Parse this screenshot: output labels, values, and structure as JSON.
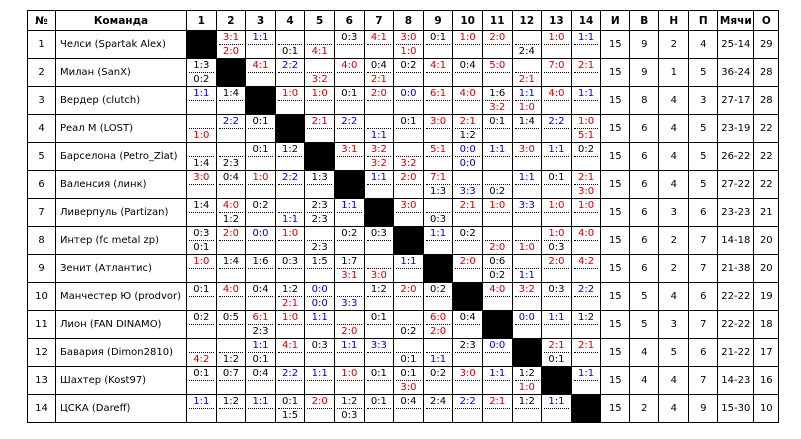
{
  "headers": {
    "num": "№",
    "team": "Команда",
    "cols": [
      "1",
      "2",
      "3",
      "4",
      "5",
      "6",
      "7",
      "8",
      "9",
      "10",
      "11",
      "12",
      "13",
      "14"
    ],
    "games": "И",
    "wins": "В",
    "draws": "Н",
    "losses": "П",
    "goals": "Мячи",
    "points": "О"
  },
  "colors": {
    "win": "#d00000",
    "draw": "#0000c0",
    "loss": "#000000"
  },
  "rows": [
    {
      "num": "1",
      "team": "Челси (Spartak Alex)",
      "results": [
        null,
        [
          "3:1",
          "2:0"
        ],
        [
          "1:1",
          ""
        ],
        [
          "",
          "0:1"
        ],
        [
          "",
          "4:1"
        ],
        [
          "0:3",
          ""
        ],
        [
          "4:1",
          ""
        ],
        [
          "3:0",
          "1:0"
        ],
        [
          "0:1",
          ""
        ],
        [
          "1:0",
          ""
        ],
        [
          "2:0",
          ""
        ],
        [
          "",
          "2:4"
        ],
        [
          "1:0",
          ""
        ],
        [
          "1:1",
          ""
        ]
      ],
      "games": "15",
      "w": "9",
      "d": "2",
      "l": "4",
      "goals": "25-14",
      "pts": "29"
    },
    {
      "num": "2",
      "team": "Милан (SanX)",
      "results": [
        [
          "1:3",
          "0:2"
        ],
        null,
        [
          "4:1",
          ""
        ],
        [
          "2:2",
          ""
        ],
        [
          "",
          "3:2"
        ],
        [
          "4:0",
          ""
        ],
        [
          "0:4",
          "2:1"
        ],
        [
          "0:2",
          ""
        ],
        [
          "4:1",
          ""
        ],
        [
          "0:4",
          ""
        ],
        [
          "5:0",
          ""
        ],
        [
          "",
          "2:1"
        ],
        [
          "7:0",
          ""
        ],
        [
          "2:1",
          ""
        ]
      ],
      "games": "15",
      "w": "9",
      "d": "1",
      "l": "5",
      "goals": "36-24",
      "pts": "28"
    },
    {
      "num": "3",
      "team": "Вердер (clutch)",
      "results": [
        [
          "1:1",
          ""
        ],
        [
          "1:4",
          ""
        ],
        null,
        [
          "1:0",
          ""
        ],
        [
          "1:0",
          ""
        ],
        [
          "0:1",
          ""
        ],
        [
          "2:0",
          ""
        ],
        [
          "0:0",
          ""
        ],
        [
          "6:1",
          ""
        ],
        [
          "4:0",
          ""
        ],
        [
          "1:6",
          "3:2"
        ],
        [
          "1:1",
          "1:0"
        ],
        [
          "4:0",
          ""
        ],
        [
          "1:1",
          ""
        ]
      ],
      "games": "15",
      "w": "8",
      "d": "4",
      "l": "3",
      "goals": "27-17",
      "pts": "28"
    },
    {
      "num": "4",
      "team": "Реал М (LOST)",
      "results": [
        [
          "",
          "1:0"
        ],
        [
          "2:2",
          ""
        ],
        [
          "0:1",
          ""
        ],
        null,
        [
          "2:1",
          ""
        ],
        [
          "2:2",
          ""
        ],
        [
          "",
          "1:1"
        ],
        [
          "0:1",
          ""
        ],
        [
          "3:0",
          ""
        ],
        [
          "2:1",
          "1:2"
        ],
        [
          "0:1",
          ""
        ],
        [
          "1:4",
          ""
        ],
        [
          "2:2",
          ""
        ],
        [
          "1:0",
          "5:1"
        ]
      ],
      "games": "15",
      "w": "6",
      "d": "4",
      "l": "5",
      "goals": "23-19",
      "pts": "22"
    },
    {
      "num": "5",
      "team": "Барселона (Petro_Zlat)",
      "results": [
        [
          "",
          "1:4"
        ],
        [
          "",
          "2:3"
        ],
        [
          "0:1",
          ""
        ],
        [
          "1:2",
          ""
        ],
        null,
        [
          "3:1",
          ""
        ],
        [
          "3:2",
          "3:2"
        ],
        [
          "",
          "3:2"
        ],
        [
          "5:1",
          ""
        ],
        [
          "0:0",
          "0:0"
        ],
        [
          "1:1",
          ""
        ],
        [
          "3:0",
          ""
        ],
        [
          "1:1",
          ""
        ],
        [
          "0:2",
          ""
        ]
      ],
      "games": "15",
      "w": "6",
      "d": "4",
      "l": "5",
      "goals": "26-22",
      "pts": "22"
    },
    {
      "num": "6",
      "team": "Валенсия (линк)",
      "results": [
        [
          "3:0",
          ""
        ],
        [
          "0:4",
          ""
        ],
        [
          "1:0",
          ""
        ],
        [
          "2:2",
          ""
        ],
        [
          "1:3",
          ""
        ],
        null,
        [
          "1:1",
          ""
        ],
        [
          "2:0",
          ""
        ],
        [
          "7:1",
          "1:3"
        ],
        [
          "",
          "3:3"
        ],
        [
          "",
          "0:2"
        ],
        [
          "1:1",
          ""
        ],
        [
          "0:1",
          ""
        ],
        [
          "2:1",
          "3:0"
        ]
      ],
      "games": "15",
      "w": "6",
      "d": "4",
      "l": "5",
      "goals": "27-22",
      "pts": "22"
    },
    {
      "num": "7",
      "team": "Ливерпуль (Partizan)",
      "results": [
        [
          "1:4",
          ""
        ],
        [
          "4:0",
          "1:2"
        ],
        [
          "0:2",
          ""
        ],
        [
          "",
          "1:1"
        ],
        [
          "2:3",
          "2:3"
        ],
        [
          "1:1",
          ""
        ],
        null,
        [
          "3:0",
          ""
        ],
        [
          "",
          "0:3"
        ],
        [
          "2:1",
          ""
        ],
        [
          "1:0",
          ""
        ],
        [
          "3:3",
          ""
        ],
        [
          "1:0",
          ""
        ],
        [
          "1:0",
          ""
        ]
      ],
      "games": "15",
      "w": "6",
      "d": "3",
      "l": "6",
      "goals": "23-23",
      "pts": "21"
    },
    {
      "num": "8",
      "team": "Интер (fc metal zp)",
      "results": [
        [
          "0:3",
          "0:1"
        ],
        [
          "2:0",
          ""
        ],
        [
          "0:0",
          ""
        ],
        [
          "1:0",
          ""
        ],
        [
          "",
          "2:3"
        ],
        [
          "0:2",
          ""
        ],
        [
          "0:3",
          ""
        ],
        null,
        [
          "1:1",
          ""
        ],
        [
          "0:2",
          ""
        ],
        [
          "",
          "2:0"
        ],
        [
          "",
          "1:0"
        ],
        [
          "1:0",
          "0:3"
        ],
        [
          "4:0",
          ""
        ]
      ],
      "games": "15",
      "w": "6",
      "d": "2",
      "l": "7",
      "goals": "14-18",
      "pts": "20"
    },
    {
      "num": "9",
      "team": "Зенит (Атлантис)",
      "results": [
        [
          "1:0",
          ""
        ],
        [
          "1:4",
          ""
        ],
        [
          "1:6",
          ""
        ],
        [
          "0:3",
          ""
        ],
        [
          "1:5",
          ""
        ],
        [
          "1:7",
          "3:1"
        ],
        [
          "",
          "3:0"
        ],
        [
          "1:1",
          ""
        ],
        null,
        [
          "2:0",
          ""
        ],
        [
          "0:6",
          "0:2"
        ],
        [
          "",
          "1:1"
        ],
        [
          "2:0",
          ""
        ],
        [
          "4:2",
          ""
        ]
      ],
      "games": "15",
      "w": "6",
      "d": "2",
      "l": "7",
      "goals": "21-38",
      "pts": "20"
    },
    {
      "num": "10",
      "team": "Манчестер Ю (prodvor)",
      "results": [
        [
          "0:1",
          ""
        ],
        [
          "4:0",
          ""
        ],
        [
          "0:4",
          ""
        ],
        [
          "1:2",
          "2:1"
        ],
        [
          "0:0",
          "0:0"
        ],
        [
          "",
          "3:3"
        ],
        [
          "1:2",
          ""
        ],
        [
          "2:0",
          ""
        ],
        [
          "0:2",
          ""
        ],
        null,
        [
          "4:0",
          ""
        ],
        [
          "3:2",
          ""
        ],
        [
          "0:3",
          ""
        ],
        [
          "2:2",
          ""
        ]
      ],
      "games": "15",
      "w": "5",
      "d": "4",
      "l": "6",
      "goals": "22-22",
      "pts": "19"
    },
    {
      "num": "11",
      "team": "Лион (FAN DINAMO)",
      "results": [
        [
          "0:2",
          ""
        ],
        [
          "0:5",
          ""
        ],
        [
          "6:1",
          "2:3"
        ],
        [
          "1:0",
          ""
        ],
        [
          "1:1",
          ""
        ],
        [
          "",
          "2:0"
        ],
        [
          "0:1",
          ""
        ],
        [
          "",
          "0:2"
        ],
        [
          "6:0",
          "2:0"
        ],
        [
          "0:4",
          ""
        ],
        null,
        [
          "0:0",
          ""
        ],
        [
          "1:1",
          ""
        ],
        [
          "1:2",
          ""
        ]
      ],
      "games": "15",
      "w": "5",
      "d": "3",
      "l": "7",
      "goals": "22-22",
      "pts": "18"
    },
    {
      "num": "12",
      "team": "Бавария (Dimon2810)",
      "results": [
        [
          "",
          "4:2"
        ],
        [
          "",
          "1:2"
        ],
        [
          "1:1",
          "0:1"
        ],
        [
          "4:1",
          ""
        ],
        [
          "0:3",
          ""
        ],
        [
          "1:1",
          ""
        ],
        [
          "3:3",
          ""
        ],
        [
          "",
          "0:1"
        ],
        [
          "",
          "1:1"
        ],
        [
          "2:3",
          ""
        ],
        [
          "0:0",
          ""
        ],
        null,
        [
          "2:1",
          "0:1"
        ],
        [
          "2:1",
          ""
        ]
      ],
      "games": "15",
      "w": "4",
      "d": "5",
      "l": "6",
      "goals": "21-22",
      "pts": "17"
    },
    {
      "num": "13",
      "team": "Шахтер (Kost97)",
      "results": [
        [
          "0:1",
          ""
        ],
        [
          "0:7",
          ""
        ],
        [
          "0:4",
          ""
        ],
        [
          "2:2",
          ""
        ],
        [
          "1:1",
          ""
        ],
        [
          "1:0",
          ""
        ],
        [
          "0:1",
          ""
        ],
        [
          "0:1",
          "3:0"
        ],
        [
          "0:2",
          ""
        ],
        [
          "3:0",
          ""
        ],
        [
          "1:1",
          ""
        ],
        [
          "1:2",
          "1:0"
        ],
        null,
        [
          "1:1",
          ""
        ]
      ],
      "games": "15",
      "w": "4",
      "d": "4",
      "l": "7",
      "goals": "14-23",
      "pts": "16"
    },
    {
      "num": "14",
      "team": "ЦСКА (Dareff)",
      "results": [
        [
          "1:1",
          ""
        ],
        [
          "1:2",
          ""
        ],
        [
          "1:1",
          ""
        ],
        [
          "0:1",
          "1:5"
        ],
        [
          "2:0",
          ""
        ],
        [
          "1:2",
          "0:3"
        ],
        [
          "0:1",
          ""
        ],
        [
          "0:4",
          ""
        ],
        [
          "2:4",
          ""
        ],
        [
          "2:2",
          ""
        ],
        [
          "2:1",
          ""
        ],
        [
          "1:2",
          ""
        ],
        [
          "1:1",
          ""
        ],
        null
      ],
      "games": "15",
      "w": "2",
      "d": "4",
      "l": "9",
      "goals": "15-30",
      "pts": "10"
    }
  ]
}
